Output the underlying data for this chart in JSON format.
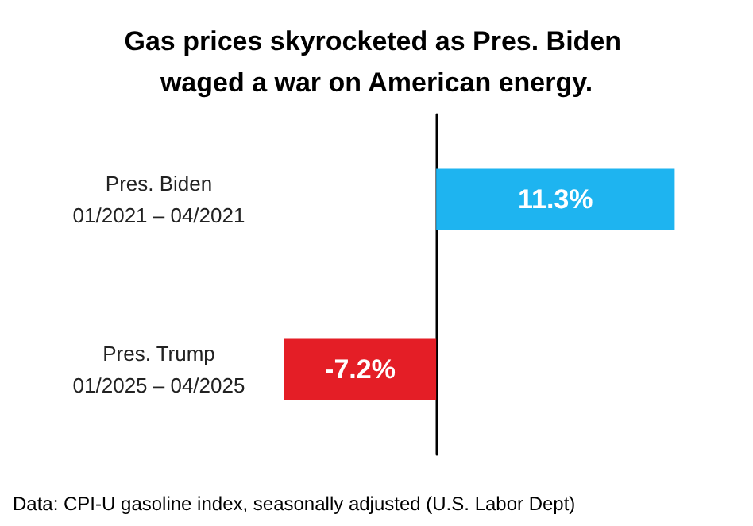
{
  "chart_data": {
    "type": "bar",
    "orientation": "horizontal",
    "title": "Gas prices skyrocketed as Pres. Biden waged a war on American energy.",
    "categories": [
      "Pres. Biden\n01/2021 – 04/2021",
      "Pres. Trump\n01/2025 – 04/2025"
    ],
    "values": [
      11.3,
      -7.2
    ],
    "colors": [
      "#1eb4f0",
      "#e41e26"
    ],
    "value_labels": [
      "11.3%",
      "-7.2%"
    ],
    "tick_labels": "y",
    "annotations": [
      "Data: CPI-U gasoline index, seasonally adjusted (U.S. Labor Dept)"
    ]
  }
}
